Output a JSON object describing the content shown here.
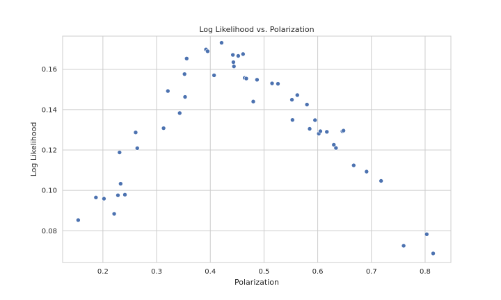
{
  "chart_data": {
    "type": "scatter",
    "title": "Log Likelihood vs. Polarization",
    "xlabel": "Polarization",
    "ylabel": "Log Likelihood",
    "xlim": [
      0.125,
      0.848
    ],
    "ylim": [
      0.0643,
      0.1764
    ],
    "xticks": [
      0.2,
      0.3,
      0.4,
      0.5,
      0.6,
      0.7,
      0.8
    ],
    "xtick_labels": [
      "0.2",
      "0.3",
      "0.4",
      "0.5",
      "0.6",
      "0.7",
      "0.8"
    ],
    "yticks": [
      0.08,
      0.1,
      0.12,
      0.14,
      0.16
    ],
    "ytick_labels": [
      "0.08",
      "0.10",
      "0.12",
      "0.14",
      "0.16"
    ],
    "grid": true,
    "marker_color": "#4c72b0",
    "series": [
      {
        "x": [
          0.154,
          0.187,
          0.202,
          0.221,
          0.228,
          0.233,
          0.231,
          0.241,
          0.261,
          0.264,
          0.313,
          0.321,
          0.343,
          0.352,
          0.353,
          0.356,
          0.392,
          0.395,
          0.407,
          0.421,
          0.442,
          0.443,
          0.444,
          0.452,
          0.461,
          0.464,
          0.467,
          0.48,
          0.487,
          0.515,
          0.526,
          0.552,
          0.553,
          0.562,
          0.58,
          0.585,
          0.595,
          0.602,
          0.605,
          0.617,
          0.63,
          0.634,
          0.646,
          0.648,
          0.667,
          0.691,
          0.718,
          0.76,
          0.803,
          0.815
        ],
        "y": [
          0.0853,
          0.0965,
          0.0959,
          0.0884,
          0.0976,
          0.1033,
          0.1188,
          0.0979,
          0.1287,
          0.1209,
          0.1308,
          0.1492,
          0.1383,
          0.1576,
          0.1463,
          0.1653,
          0.1698,
          0.1689,
          0.157,
          0.1731,
          0.1671,
          0.1635,
          0.1614,
          0.1666,
          0.1675,
          0.1557,
          0.1554,
          0.144,
          0.1548,
          0.153,
          0.1528,
          0.1449,
          0.1349,
          0.1472,
          0.1425,
          0.1305,
          0.1348,
          0.1281,
          0.1293,
          0.129,
          0.1226,
          0.121,
          0.1293,
          0.1296,
          0.1124,
          0.1093,
          0.1047,
          0.0726,
          0.0783,
          0.0688
        ]
      }
    ]
  }
}
